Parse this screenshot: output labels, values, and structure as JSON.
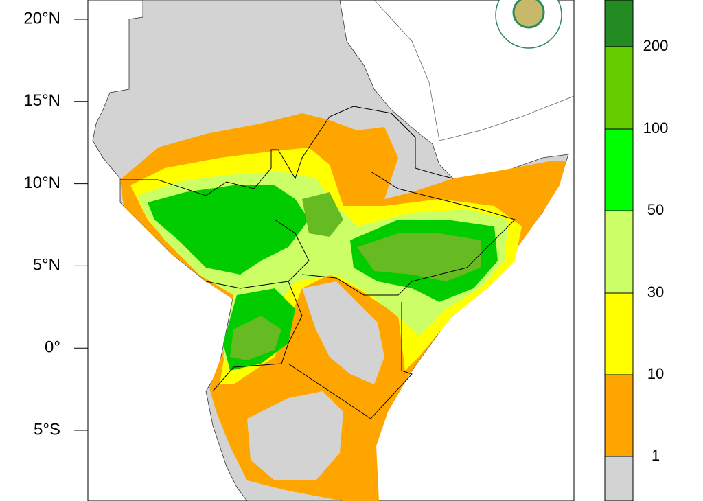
{
  "map": {
    "lat_labels": [
      "20°N",
      "15°N",
      "10°N",
      "5°N",
      "0°",
      "5°S"
    ],
    "legend": {
      "labels": [
        "200",
        "100",
        "50",
        "30",
        "10",
        "1"
      ],
      "colors": [
        "#228b22",
        "#66cc00",
        "#00ff00",
        "#ccff66",
        "#ffff00",
        "#ffa500",
        "#d3d3d3"
      ]
    }
  }
}
